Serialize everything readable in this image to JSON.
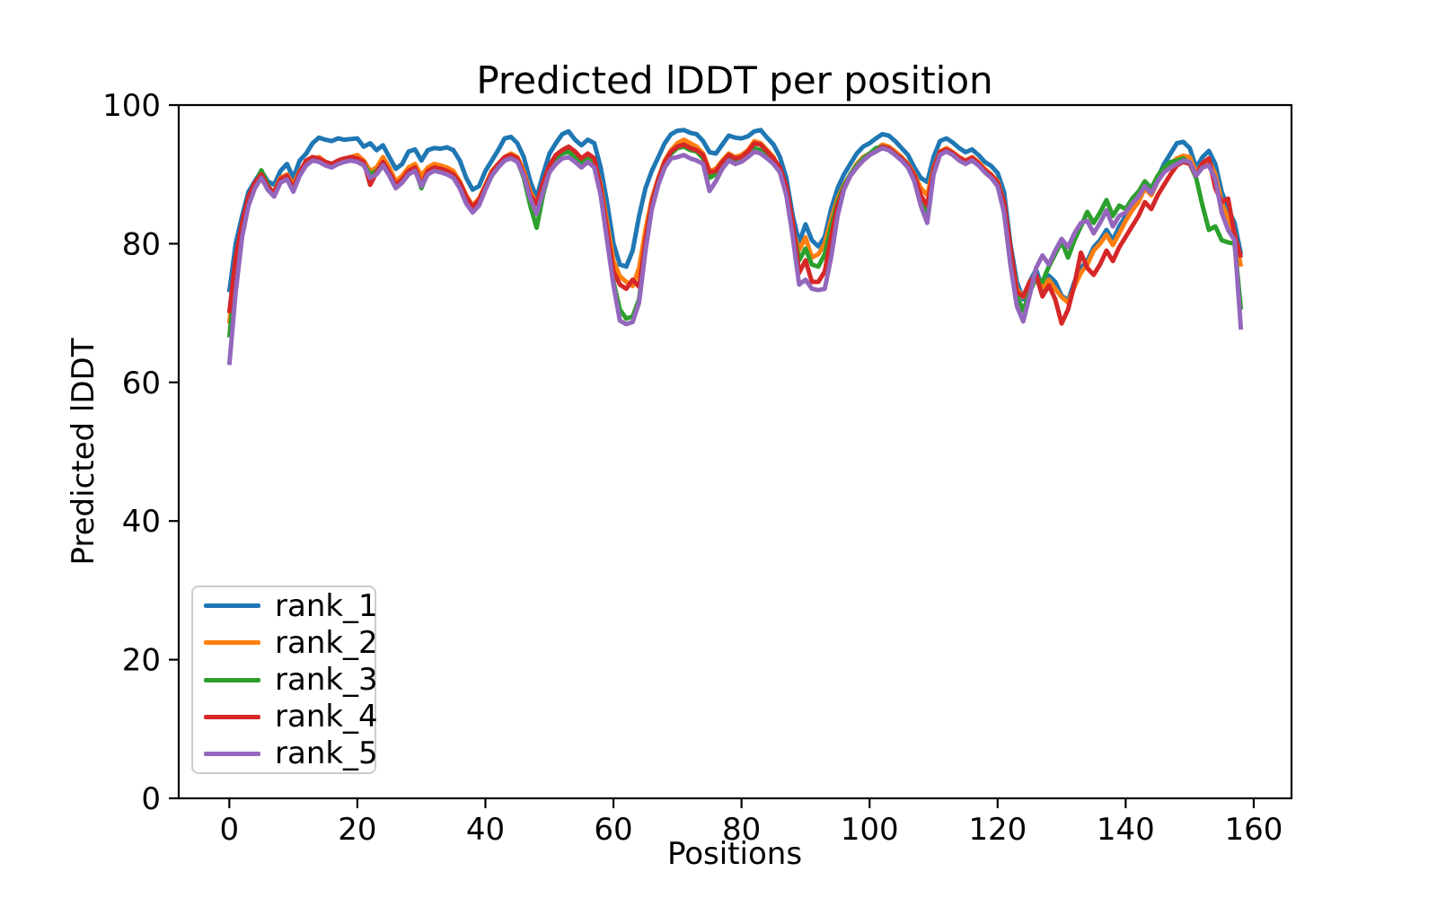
{
  "figure": {
    "title": "Predicted lDDT per position",
    "xlabel": "Positions",
    "ylabel": "Predicted lDDT"
  },
  "chart_data": {
    "type": "line",
    "title": "Predicted lDDT per position",
    "xlabel": "Positions",
    "ylabel": "Predicted lDDT",
    "xlim": [
      -7.9,
      165.9
    ],
    "ylim": [
      0,
      100
    ],
    "x_ticks": [
      0,
      20,
      40,
      60,
      80,
      100,
      120,
      140,
      160
    ],
    "y_ticks": [
      0,
      20,
      40,
      60,
      80,
      100
    ],
    "grid": false,
    "legend_position": "lower left",
    "x_start": 0,
    "axis_color": "#000000",
    "line_width": 5,
    "series": [
      {
        "name": "rank_1",
        "color": "#1f77b4",
        "values": [
          73.0,
          80.0,
          84.0,
          87.5,
          89.0,
          90.5,
          89.0,
          88.5,
          90.5,
          91.5,
          89.5,
          92.0,
          93.0,
          94.5,
          95.3,
          95.0,
          94.8,
          95.2,
          95.0,
          95.1,
          95.2,
          94.0,
          94.5,
          93.5,
          94.2,
          92.5,
          90.8,
          91.5,
          93.3,
          93.6,
          92.0,
          93.5,
          93.8,
          93.7,
          93.9,
          93.5,
          92.0,
          89.5,
          87.8,
          88.3,
          90.5,
          92.0,
          93.5,
          95.2,
          95.4,
          94.5,
          92.5,
          89.0,
          86.6,
          90.0,
          93.0,
          94.5,
          95.8,
          96.2,
          95.0,
          94.2,
          95.0,
          94.5,
          91.0,
          86.0,
          80.0,
          77.0,
          76.7,
          79.0,
          84.0,
          88.0,
          90.5,
          92.5,
          94.5,
          95.8,
          96.3,
          96.4,
          96.0,
          95.8,
          94.8,
          93.2,
          93.0,
          94.3,
          95.6,
          95.3,
          95.2,
          95.5,
          96.2,
          96.4,
          95.3,
          94.3,
          92.5,
          89.5,
          84.0,
          80.2,
          82.8,
          80.5,
          79.6,
          81.0,
          85.0,
          88.0,
          90.0,
          91.5,
          93.0,
          94.0,
          94.5,
          95.2,
          95.8,
          95.6,
          94.8,
          93.8,
          92.8,
          91.0,
          89.5,
          88.9,
          92.5,
          94.8,
          95.2,
          94.6,
          93.8,
          93.2,
          93.6,
          92.8,
          91.8,
          91.2,
          90.2,
          87.5,
          80.0,
          74.5,
          72.0,
          74.5,
          76.3,
          73.5,
          75.4,
          74.5,
          72.5,
          71.8,
          74.5,
          76.5,
          77.5,
          79.5,
          80.5,
          82.0,
          80.5,
          82.5,
          84.0,
          85.5,
          86.5,
          88.5,
          87.5,
          89.5,
          91.5,
          93.0,
          94.5,
          94.7,
          93.8,
          91.0,
          92.5,
          93.4,
          91.5,
          87.5,
          85.0,
          83.0,
          78.5
        ]
      },
      {
        "name": "rank_2",
        "color": "#ff7f0e",
        "values": [
          68.5,
          77.0,
          82.5,
          86.5,
          88.5,
          89.5,
          88.0,
          87.5,
          89.5,
          90.0,
          88.5,
          90.5,
          91.5,
          92.0,
          92.5,
          91.8,
          91.5,
          92.0,
          92.2,
          92.5,
          92.8,
          92.0,
          90.5,
          91.0,
          92.5,
          91.0,
          89.0,
          89.8,
          91.0,
          91.5,
          89.8,
          91.0,
          91.5,
          91.3,
          91.0,
          90.5,
          89.0,
          87.0,
          85.5,
          86.5,
          88.5,
          90.5,
          91.5,
          92.5,
          93.0,
          92.5,
          90.5,
          87.5,
          85.8,
          88.5,
          91.0,
          92.5,
          93.5,
          93.8,
          93.0,
          92.0,
          92.8,
          92.0,
          88.5,
          83.0,
          77.5,
          75.3,
          74.5,
          73.9,
          76.5,
          82.0,
          86.5,
          89.5,
          92.0,
          93.5,
          94.5,
          95.0,
          94.5,
          94.0,
          93.0,
          90.5,
          90.8,
          92.0,
          93.0,
          92.5,
          92.8,
          93.5,
          94.8,
          94.5,
          93.5,
          92.5,
          90.5,
          87.5,
          82.0,
          79.1,
          80.9,
          78.0,
          78.5,
          80.0,
          83.5,
          86.5,
          88.5,
          90.0,
          91.5,
          92.5,
          93.0,
          93.5,
          94.3,
          94.0,
          93.3,
          92.5,
          91.5,
          90.0,
          88.0,
          87.0,
          91.0,
          93.3,
          93.8,
          93.2,
          92.5,
          92.0,
          92.5,
          91.8,
          90.8,
          90.0,
          89.0,
          86.0,
          79.0,
          73.5,
          72.3,
          74.0,
          75.4,
          73.7,
          74.8,
          73.5,
          72.3,
          71.5,
          73.8,
          75.8,
          77.0,
          79.0,
          80.0,
          81.3,
          79.8,
          81.5,
          83.3,
          84.8,
          86.0,
          88.0,
          87.0,
          89.0,
          90.5,
          91.5,
          92.3,
          92.7,
          92.5,
          90.3,
          91.5,
          92.0,
          90.0,
          86.0,
          83.5,
          81.5,
          76.7
        ]
      },
      {
        "name": "rank_3",
        "color": "#2ca02c",
        "values": [
          66.5,
          75.5,
          82.0,
          86.0,
          88.5,
          90.6,
          88.5,
          87.0,
          89.0,
          89.5,
          87.8,
          90.0,
          91.8,
          92.3,
          92.0,
          91.5,
          91.2,
          91.8,
          92.0,
          92.3,
          92.0,
          91.5,
          90.0,
          90.5,
          91.5,
          90.0,
          88.3,
          89.0,
          90.3,
          90.8,
          88.0,
          90.3,
          90.8,
          90.5,
          90.3,
          89.8,
          88.5,
          86.5,
          85.0,
          86.0,
          88.0,
          90.0,
          91.3,
          92.3,
          92.5,
          92.0,
          89.5,
          85.5,
          82.3,
          87.0,
          90.5,
          92.0,
          93.0,
          93.3,
          92.5,
          91.5,
          92.3,
          91.5,
          87.5,
          81.5,
          74.5,
          70.5,
          69.2,
          69.5,
          72.0,
          79.5,
          85.5,
          89.0,
          91.5,
          93.0,
          93.8,
          94.0,
          93.5,
          93.3,
          92.3,
          89.5,
          90.0,
          91.3,
          92.5,
          92.0,
          92.3,
          93.0,
          93.8,
          93.5,
          92.8,
          92.0,
          90.8,
          88.0,
          82.5,
          77.6,
          79.3,
          77.0,
          76.7,
          78.5,
          82.5,
          86.0,
          88.3,
          90.0,
          91.3,
          92.3,
          93.0,
          93.8,
          94.0,
          93.8,
          93.0,
          92.3,
          91.3,
          89.5,
          86.5,
          84.5,
          90.5,
          93.0,
          93.5,
          93.0,
          92.3,
          91.8,
          92.3,
          91.5,
          90.5,
          89.8,
          88.5,
          85.0,
          78.0,
          72.5,
          70.3,
          73.0,
          75.0,
          74.5,
          76.7,
          78.5,
          80.3,
          78.0,
          80.5,
          82.5,
          84.6,
          83.0,
          84.5,
          86.3,
          84.0,
          85.5,
          85.0,
          86.5,
          87.5,
          89.0,
          88.0,
          89.8,
          91.0,
          91.8,
          92.0,
          92.3,
          91.5,
          89.5,
          85.5,
          82.0,
          82.5,
          80.5,
          80.2,
          80.0,
          70.5
        ]
      },
      {
        "name": "rank_4",
        "color": "#d62728",
        "values": [
          70.0,
          78.0,
          83.0,
          86.8,
          88.8,
          90.0,
          88.3,
          87.3,
          89.3,
          89.8,
          88.0,
          90.3,
          92.0,
          92.5,
          92.3,
          91.8,
          91.5,
          92.0,
          92.3,
          92.5,
          92.3,
          91.8,
          88.5,
          90.3,
          91.8,
          90.3,
          88.5,
          89.3,
          90.5,
          91.0,
          88.5,
          90.5,
          91.0,
          90.8,
          90.5,
          90.0,
          88.8,
          86.8,
          85.3,
          86.3,
          88.3,
          90.3,
          91.5,
          92.5,
          92.8,
          92.3,
          90.0,
          87.0,
          85.7,
          88.8,
          91.3,
          92.8,
          93.5,
          94.0,
          93.3,
          92.3,
          93.0,
          92.3,
          88.0,
          82.0,
          76.0,
          74.1,
          73.5,
          74.8,
          73.8,
          80.5,
          86.0,
          89.3,
          91.8,
          93.3,
          94.0,
          94.3,
          93.8,
          93.5,
          92.8,
          90.3,
          90.5,
          91.8,
          92.8,
          92.3,
          92.5,
          93.3,
          94.5,
          94.3,
          93.3,
          92.3,
          91.0,
          88.3,
          83.0,
          75.8,
          77.6,
          74.5,
          74.5,
          76.0,
          81.0,
          85.5,
          88.0,
          89.8,
          91.0,
          92.0,
          92.8,
          93.3,
          94.0,
          93.8,
          93.0,
          92.3,
          91.3,
          89.8,
          87.0,
          85.5,
          90.8,
          93.2,
          93.6,
          93.1,
          92.4,
          91.9,
          92.4,
          91.6,
          90.6,
          89.9,
          88.8,
          86.0,
          79.5,
          73.0,
          72.4,
          74.5,
          75.5,
          72.4,
          74.0,
          72.0,
          68.5,
          70.5,
          74.1,
          78.7,
          76.5,
          75.5,
          77.0,
          79.0,
          77.5,
          79.5,
          81.0,
          82.5,
          84.0,
          86.0,
          85.0,
          87.0,
          88.5,
          90.0,
          91.3,
          91.8,
          91.5,
          89.8,
          91.6,
          92.3,
          88.0,
          86.0,
          86.5,
          81.3,
          78.0
        ]
      },
      {
        "name": "rank_5",
        "color": "#9467bd",
        "values": [
          62.5,
          73.0,
          81.0,
          85.5,
          88.0,
          89.5,
          87.8,
          86.8,
          88.8,
          89.3,
          87.5,
          89.8,
          91.3,
          92.0,
          91.8,
          91.3,
          91.0,
          91.5,
          91.8,
          92.0,
          91.8,
          91.3,
          89.5,
          90.0,
          91.3,
          89.8,
          88.0,
          88.8,
          90.0,
          90.5,
          88.3,
          90.0,
          90.5,
          90.3,
          90.0,
          89.5,
          88.0,
          85.8,
          84.5,
          85.5,
          87.8,
          89.8,
          91.0,
          92.0,
          92.3,
          91.8,
          89.8,
          86.5,
          84.3,
          87.5,
          90.3,
          91.5,
          92.3,
          92.5,
          91.8,
          91.0,
          91.8,
          91.0,
          87.0,
          80.5,
          74.0,
          68.9,
          68.4,
          68.7,
          71.5,
          79.0,
          85.0,
          88.5,
          91.0,
          92.3,
          92.5,
          92.8,
          92.3,
          92.0,
          91.5,
          87.6,
          89.0,
          90.8,
          92.0,
          91.5,
          91.8,
          92.5,
          93.3,
          93.0,
          92.3,
          91.5,
          90.3,
          87.0,
          81.0,
          74.1,
          74.8,
          73.5,
          73.3,
          73.5,
          78.0,
          84.0,
          87.8,
          89.8,
          91.0,
          92.0,
          92.8,
          93.3,
          93.8,
          93.5,
          92.8,
          92.0,
          91.0,
          89.0,
          85.5,
          83.0,
          90.0,
          92.8,
          93.3,
          92.8,
          92.0,
          91.5,
          92.0,
          91.3,
          90.3,
          89.5,
          88.3,
          84.5,
          77.0,
          71.0,
          68.8,
          72.5,
          76.5,
          78.3,
          77.0,
          79.0,
          80.7,
          79.5,
          81.5,
          83.0,
          83.3,
          81.5,
          83.0,
          84.8,
          82.5,
          84.0,
          84.5,
          85.8,
          86.8,
          88.3,
          87.3,
          89.0,
          90.3,
          91.0,
          91.5,
          92.0,
          91.8,
          89.8,
          91.0,
          91.3,
          89.3,
          84.5,
          82.0,
          80.5,
          67.6
        ]
      }
    ]
  }
}
